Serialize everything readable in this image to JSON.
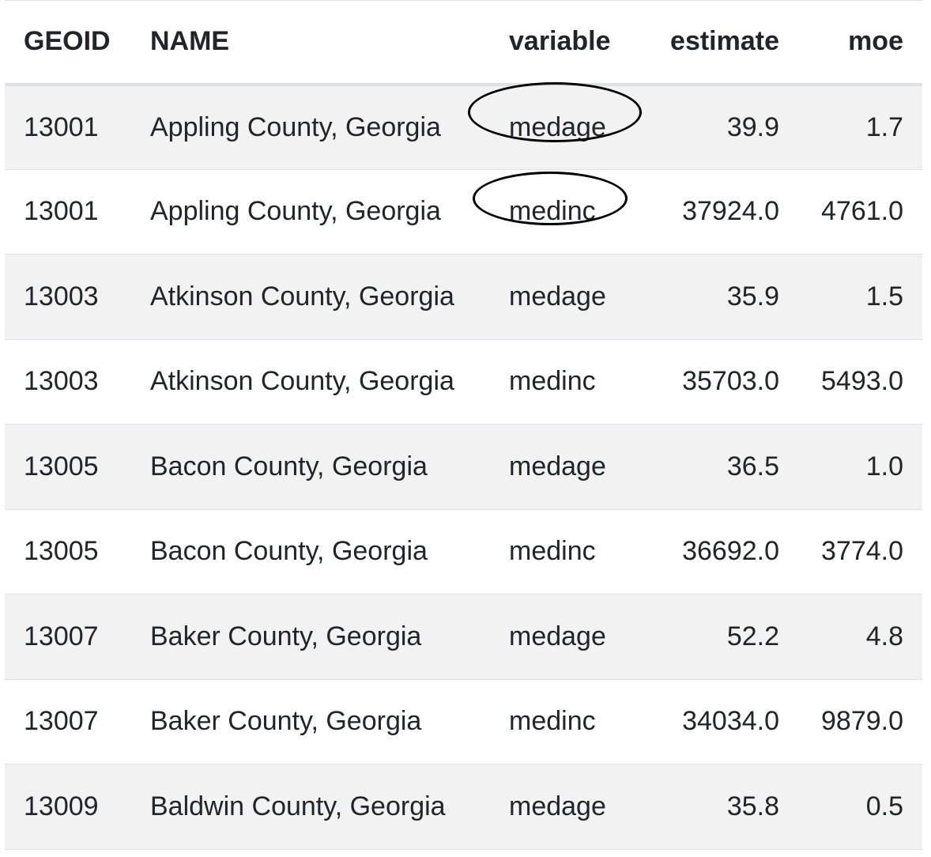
{
  "table": {
    "columns": [
      "GEOID",
      "NAME",
      "variable",
      "estimate",
      "moe"
    ],
    "rows": [
      {
        "geoid": "13001",
        "name": "Appling County, Georgia",
        "variable": "medage",
        "estimate": "39.9",
        "moe": "1.7",
        "circled": true
      },
      {
        "geoid": "13001",
        "name": "Appling County, Georgia",
        "variable": "medinc",
        "estimate": "37924.0",
        "moe": "4761.0",
        "circled": true
      },
      {
        "geoid": "13003",
        "name": "Atkinson County, Georgia",
        "variable": "medage",
        "estimate": "35.9",
        "moe": "1.5",
        "circled": false
      },
      {
        "geoid": "13003",
        "name": "Atkinson County, Georgia",
        "variable": "medinc",
        "estimate": "35703.0",
        "moe": "5493.0",
        "circled": false
      },
      {
        "geoid": "13005",
        "name": "Bacon County, Georgia",
        "variable": "medage",
        "estimate": "36.5",
        "moe": "1.0",
        "circled": false
      },
      {
        "geoid": "13005",
        "name": "Bacon County, Georgia",
        "variable": "medinc",
        "estimate": "36692.0",
        "moe": "3774.0",
        "circled": false
      },
      {
        "geoid": "13007",
        "name": "Baker County, Georgia",
        "variable": "medage",
        "estimate": "52.2",
        "moe": "4.8",
        "circled": false
      },
      {
        "geoid": "13007",
        "name": "Baker County, Georgia",
        "variable": "medinc",
        "estimate": "34034.0",
        "moe": "9879.0",
        "circled": false
      },
      {
        "geoid": "13009",
        "name": "Baldwin County, Georgia",
        "variable": "medage",
        "estimate": "35.8",
        "moe": "0.5",
        "circled": false
      }
    ]
  },
  "colors": {
    "stripe": "#f2f2f2",
    "border": "#dee2e6",
    "text": "#212529",
    "annotation": "#000000"
  }
}
